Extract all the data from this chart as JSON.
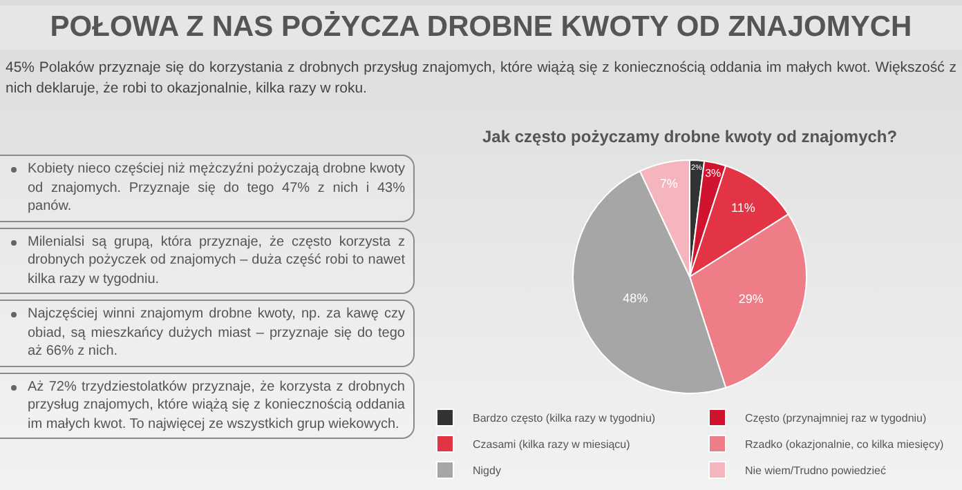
{
  "chart_data": {
    "type": "pie",
    "title": "POŁOWA Z NAS POŻYCZA DROBNE KWOTY OD ZNAJOMYCH",
    "subtitle": "45% Polaków przyznaje się do korzystania z drobnych przysług znajomych, które wiążą się z koniecznością oddania im małych kwot. Większość z nich deklaruje, że robi to okazjonalnie, kilka razy w roku.",
    "annotations": [
      "Jak często pożyczamy drobne kwoty od znajomych?",
      "Kobiety nieco częściej niż mężczyźni pożyczają drobne kwoty od znajomych. Przyznaje się do tego 47% z nich i 43% panów.",
      "Milenialsi są grupą, która przyznaje, że często korzysta z drobnych pożyczek od znajomych – duża część robi to nawet kilka razy w tygodniu.",
      "Najczęściej winni znajomym drobne kwoty, np. za kawę czy obiad, są mieszkańcy dużych miast – przyznaje się do tego aż 66% z nich.",
      "Aż 72% trzydziestolatków przyznaje, że korzysta z drobnych przysług znajomych, które wiążą się z koniecznością oddania im małych kwot. To najwięcej ze wszystkich grup wiekowych."
    ],
    "categories": [
      "Bardzo często (kilka razy w tygodniu)",
      "Często (przynajmniej raz w tygodniu)",
      "Czasami (kilka razy w miesiącu)",
      "Rzadko (okazjonalnie, co kilka miesięcy)",
      "Nigdy",
      "Nie wiem/Trudno powiedzieć"
    ],
    "values": [
      2,
      3,
      11,
      29,
      48,
      7
    ],
    "value_labels": [
      "2%",
      "3%",
      "11%",
      "29%",
      "48%",
      "7%"
    ],
    "colors": [
      "#333333",
      "#d0132f",
      "#e23445",
      "#ee7d88",
      "#a6a6a6",
      "#f5b5bd"
    ],
    "legend": "bottom"
  }
}
